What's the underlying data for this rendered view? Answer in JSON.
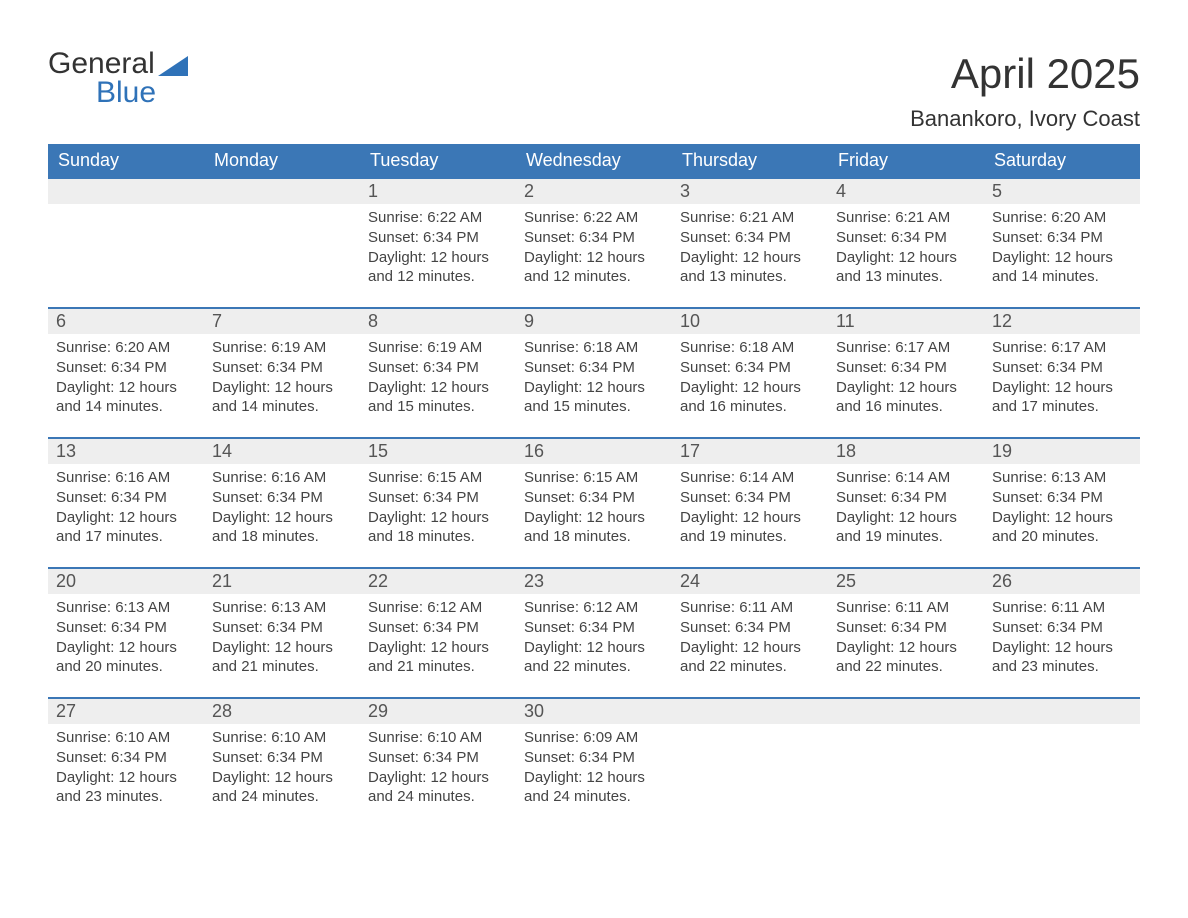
{
  "logo": {
    "word1": "General",
    "word2": "Blue",
    "mark_color": "#2f72b8"
  },
  "title": "April 2025",
  "subtitle": "Banankoro, Ivory Coast",
  "colors": {
    "header_bg": "#3b77b6",
    "header_fg": "#ffffff",
    "daynum_bg": "#eeeeee",
    "cell_border": "#3b77b6",
    "text": "#333333"
  },
  "weekdays": [
    "Sunday",
    "Monday",
    "Tuesday",
    "Wednesday",
    "Thursday",
    "Friday",
    "Saturday"
  ],
  "labels": {
    "sunrise": "Sunrise:",
    "sunset": "Sunset:",
    "daylight": "Daylight:"
  },
  "weeks": [
    [
      null,
      null,
      {
        "n": "1",
        "sr": "6:22 AM",
        "ss": "6:34 PM",
        "dl": "12 hours and 12 minutes."
      },
      {
        "n": "2",
        "sr": "6:22 AM",
        "ss": "6:34 PM",
        "dl": "12 hours and 12 minutes."
      },
      {
        "n": "3",
        "sr": "6:21 AM",
        "ss": "6:34 PM",
        "dl": "12 hours and 13 minutes."
      },
      {
        "n": "4",
        "sr": "6:21 AM",
        "ss": "6:34 PM",
        "dl": "12 hours and 13 minutes."
      },
      {
        "n": "5",
        "sr": "6:20 AM",
        "ss": "6:34 PM",
        "dl": "12 hours and 14 minutes."
      }
    ],
    [
      {
        "n": "6",
        "sr": "6:20 AM",
        "ss": "6:34 PM",
        "dl": "12 hours and 14 minutes."
      },
      {
        "n": "7",
        "sr": "6:19 AM",
        "ss": "6:34 PM",
        "dl": "12 hours and 14 minutes."
      },
      {
        "n": "8",
        "sr": "6:19 AM",
        "ss": "6:34 PM",
        "dl": "12 hours and 15 minutes."
      },
      {
        "n": "9",
        "sr": "6:18 AM",
        "ss": "6:34 PM",
        "dl": "12 hours and 15 minutes."
      },
      {
        "n": "10",
        "sr": "6:18 AM",
        "ss": "6:34 PM",
        "dl": "12 hours and 16 minutes."
      },
      {
        "n": "11",
        "sr": "6:17 AM",
        "ss": "6:34 PM",
        "dl": "12 hours and 16 minutes."
      },
      {
        "n": "12",
        "sr": "6:17 AM",
        "ss": "6:34 PM",
        "dl": "12 hours and 17 minutes."
      }
    ],
    [
      {
        "n": "13",
        "sr": "6:16 AM",
        "ss": "6:34 PM",
        "dl": "12 hours and 17 minutes."
      },
      {
        "n": "14",
        "sr": "6:16 AM",
        "ss": "6:34 PM",
        "dl": "12 hours and 18 minutes."
      },
      {
        "n": "15",
        "sr": "6:15 AM",
        "ss": "6:34 PM",
        "dl": "12 hours and 18 minutes."
      },
      {
        "n": "16",
        "sr": "6:15 AM",
        "ss": "6:34 PM",
        "dl": "12 hours and 18 minutes."
      },
      {
        "n": "17",
        "sr": "6:14 AM",
        "ss": "6:34 PM",
        "dl": "12 hours and 19 minutes."
      },
      {
        "n": "18",
        "sr": "6:14 AM",
        "ss": "6:34 PM",
        "dl": "12 hours and 19 minutes."
      },
      {
        "n": "19",
        "sr": "6:13 AM",
        "ss": "6:34 PM",
        "dl": "12 hours and 20 minutes."
      }
    ],
    [
      {
        "n": "20",
        "sr": "6:13 AM",
        "ss": "6:34 PM",
        "dl": "12 hours and 20 minutes."
      },
      {
        "n": "21",
        "sr": "6:13 AM",
        "ss": "6:34 PM",
        "dl": "12 hours and 21 minutes."
      },
      {
        "n": "22",
        "sr": "6:12 AM",
        "ss": "6:34 PM",
        "dl": "12 hours and 21 minutes."
      },
      {
        "n": "23",
        "sr": "6:12 AM",
        "ss": "6:34 PM",
        "dl": "12 hours and 22 minutes."
      },
      {
        "n": "24",
        "sr": "6:11 AM",
        "ss": "6:34 PM",
        "dl": "12 hours and 22 minutes."
      },
      {
        "n": "25",
        "sr": "6:11 AM",
        "ss": "6:34 PM",
        "dl": "12 hours and 22 minutes."
      },
      {
        "n": "26",
        "sr": "6:11 AM",
        "ss": "6:34 PM",
        "dl": "12 hours and 23 minutes."
      }
    ],
    [
      {
        "n": "27",
        "sr": "6:10 AM",
        "ss": "6:34 PM",
        "dl": "12 hours and 23 minutes."
      },
      {
        "n": "28",
        "sr": "6:10 AM",
        "ss": "6:34 PM",
        "dl": "12 hours and 24 minutes."
      },
      {
        "n": "29",
        "sr": "6:10 AM",
        "ss": "6:34 PM",
        "dl": "12 hours and 24 minutes."
      },
      {
        "n": "30",
        "sr": "6:09 AM",
        "ss": "6:34 PM",
        "dl": "12 hours and 24 minutes."
      },
      null,
      null,
      null
    ]
  ]
}
